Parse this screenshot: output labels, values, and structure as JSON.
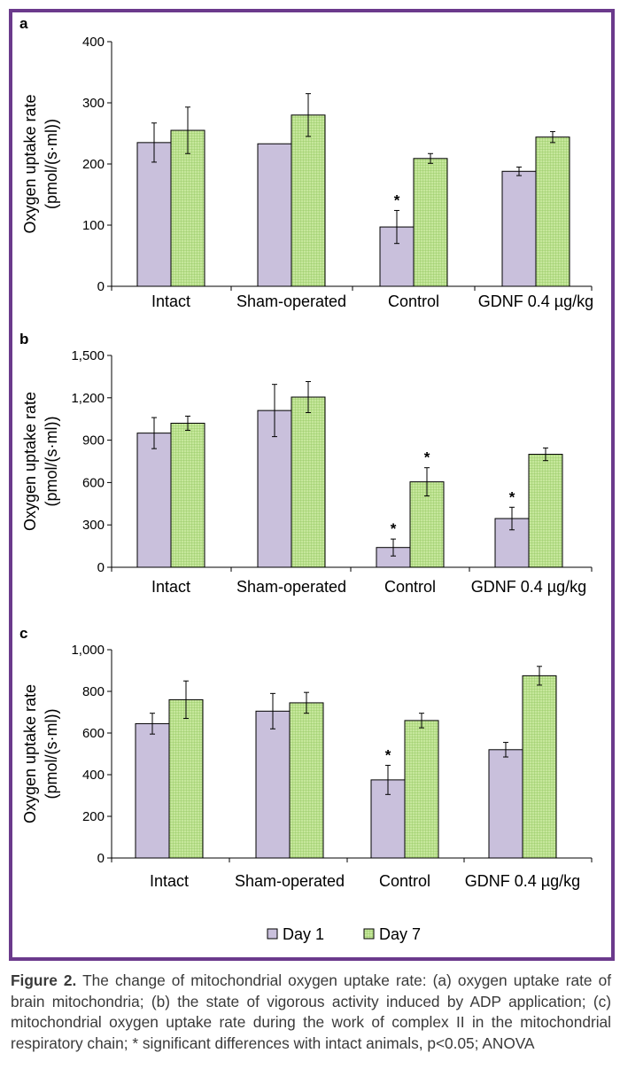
{
  "legend": [
    {
      "label": "Day 1",
      "color": "#c9c0dc"
    },
    {
      "label": "Day 7",
      "color": "#b9e08e"
    }
  ],
  "colors": {
    "frame": "#6b3a8c",
    "day1": "#c9c0dc",
    "day7": "#b9e08e"
  },
  "chart_data": [
    {
      "type": "bar",
      "panel": "a",
      "ylabel_line1": "Oxygen uptake rate",
      "ylabel_line2": "(pmol/(s·ml))",
      "ylim": [
        0,
        400
      ],
      "yticks": [
        0,
        100,
        200,
        300,
        400
      ],
      "ytick_labels": [
        "0",
        "100",
        "200",
        "300",
        "400"
      ],
      "categories": [
        "Intact",
        "Sham-operated",
        "Control",
        "GDNF 0.4 µg/kg"
      ],
      "series": [
        {
          "name": "Day 1",
          "values": [
            235,
            233,
            97,
            188
          ],
          "errors": [
            32,
            0,
            27,
            7
          ],
          "significant": [
            false,
            false,
            true,
            false
          ]
        },
        {
          "name": "Day 7",
          "values": [
            255,
            280,
            209,
            244
          ],
          "errors": [
            38,
            35,
            8,
            9
          ],
          "significant": [
            false,
            false,
            false,
            false
          ]
        }
      ]
    },
    {
      "type": "bar",
      "panel": "b",
      "ylabel_line1": "Oxygen uptake rate",
      "ylabel_line2": "(pmol/(s·ml))",
      "ylim": [
        0,
        1500
      ],
      "yticks": [
        0,
        300,
        600,
        900,
        1200,
        1500
      ],
      "ytick_labels": [
        "0",
        "300",
        "600",
        "900",
        "1,200",
        "1,500"
      ],
      "categories": [
        "Intact",
        "Sham-operated",
        "Control",
        "GDNF 0.4 µg/kg"
      ],
      "series": [
        {
          "name": "Day 1",
          "values": [
            950,
            1110,
            140,
            345
          ],
          "errors": [
            110,
            185,
            60,
            80
          ],
          "significant": [
            false,
            false,
            true,
            true
          ]
        },
        {
          "name": "Day 7",
          "values": [
            1020,
            1205,
            605,
            800
          ],
          "errors": [
            50,
            110,
            100,
            45
          ],
          "significant": [
            false,
            false,
            true,
            false
          ]
        }
      ]
    },
    {
      "type": "bar",
      "panel": "c",
      "ylabel_line1": "Oxygen uptake rate",
      "ylabel_line2": "(pmol/(s·ml))",
      "ylim": [
        0,
        1000
      ],
      "yticks": [
        0,
        200,
        400,
        600,
        800,
        1000
      ],
      "ytick_labels": [
        "0",
        "200",
        "400",
        "600",
        "800",
        "1,000"
      ],
      "categories": [
        "Intact",
        "Sham-operated",
        "Control",
        "GDNF 0.4 µg/kg"
      ],
      "series": [
        {
          "name": "Day 1",
          "values": [
            645,
            705,
            375,
            520
          ],
          "errors": [
            50,
            85,
            70,
            35
          ],
          "significant": [
            false,
            false,
            true,
            false
          ]
        },
        {
          "name": "Day 7",
          "values": [
            760,
            745,
            660,
            875
          ],
          "errors": [
            90,
            50,
            35,
            45
          ],
          "significant": [
            false,
            false,
            false,
            false
          ]
        }
      ]
    }
  ],
  "caption": {
    "bold": "Figure 2.",
    "text": " The change of mitochondrial oxygen uptake rate: (a) oxygen uptake rate of brain mitochondria; (b) the state of vigorous activity induced by ADP application; (c) mitochondrial oxygen uptake rate during the work of complex II in the mitochondrial respiratory chain; * significant differences with intact animals, p<0.05; ANOVA"
  }
}
